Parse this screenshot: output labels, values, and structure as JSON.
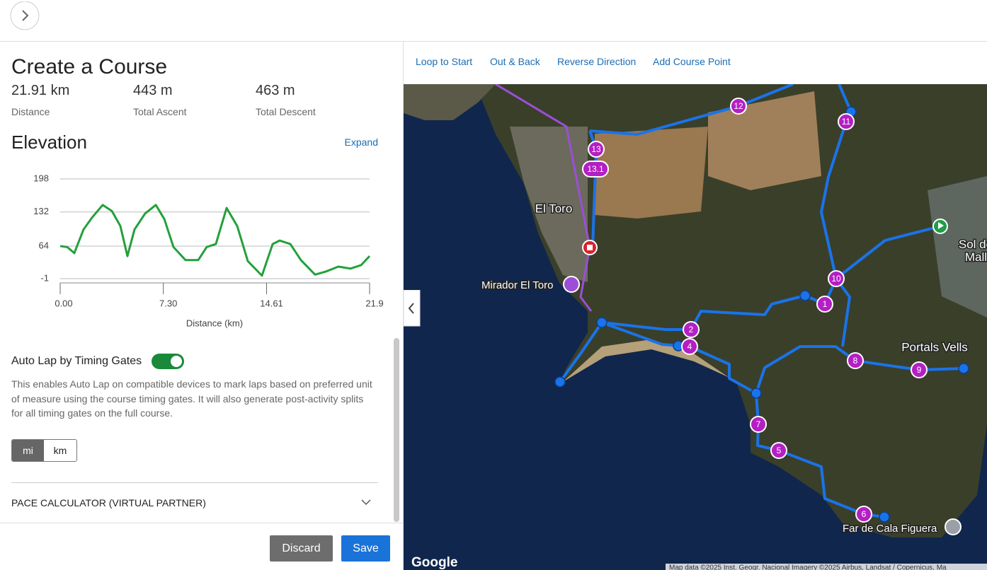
{
  "toolbar": {
    "links": [
      "Loop to Start",
      "Out & Back",
      "Reverse Direction",
      "Add Course Point"
    ]
  },
  "panel": {
    "title": "Create a Course",
    "stats": [
      {
        "value": "21.91 km",
        "label": "Distance"
      },
      {
        "value": "443 m",
        "label": "Total Ascent"
      },
      {
        "value": "463 m",
        "label": "Total Descent"
      }
    ],
    "elevation_title": "Elevation",
    "expand": "Expand",
    "auto_lap": {
      "label": "Auto Lap by Timing Gates",
      "description": "This enables Auto Lap on compatible devices to mark laps based on preferred unit of measure using the course timing gates. It will also generate post-activity splits for all timing gates on the full course.",
      "units": [
        "mi",
        "km"
      ]
    },
    "pace_calculator": "PACE CALCULATOR (VIRTUAL PARTNER)",
    "buttons": [
      "Discard",
      "Save"
    ]
  },
  "chart_data": {
    "type": "line",
    "x_label": "Distance (km)",
    "x": [
      0,
      0.5,
      1.0,
      1.65,
      2.26,
      3.01,
      3.66,
      4.26,
      4.76,
      5.26,
      6.01,
      6.77,
      7.37,
      8.02,
      8.87,
      9.77,
      10.37,
      11.02,
      11.78,
      12.53,
      13.28,
      14.28,
      15.04,
      15.54,
      16.29,
      17.04,
      18.04,
      18.79,
      19.69,
      20.55,
      21.3,
      21.9
    ],
    "values": [
      64,
      62,
      50,
      97,
      121,
      146,
      134,
      104,
      44,
      97,
      129,
      146,
      118,
      62,
      36,
      36,
      62,
      68,
      140,
      104,
      34,
      5,
      68,
      75,
      68,
      36,
      7,
      13,
      23,
      19,
      26,
      44
    ],
    "color": "#23a03c",
    "xlim": [
      0,
      21.9
    ],
    "ylim": [
      -1,
      198
    ],
    "xticks": [
      {
        "value": 0,
        "label": "0.00"
      },
      {
        "value": 7.3,
        "label": "7.30"
      },
      14.61,
      21.9
    ],
    "yticks": [
      -1,
      64,
      132,
      198
    ],
    "grid": true
  },
  "map": {
    "markers": [
      "12",
      "11",
      "13",
      "13.1",
      "10",
      "1",
      "2",
      "4",
      "8",
      "9",
      "7",
      "5",
      "6"
    ],
    "places": [
      "El Toro",
      "Mirador El Toro",
      "Sol de Mallorca",
      "Portals Vells",
      "Far de Cala Figuera"
    ],
    "logo": "Google",
    "attribution": "Map data ©2025 Inst. Geogr. Nacional Imagery ©2025 Airbus, Landsat / Copernicus, Ma"
  }
}
